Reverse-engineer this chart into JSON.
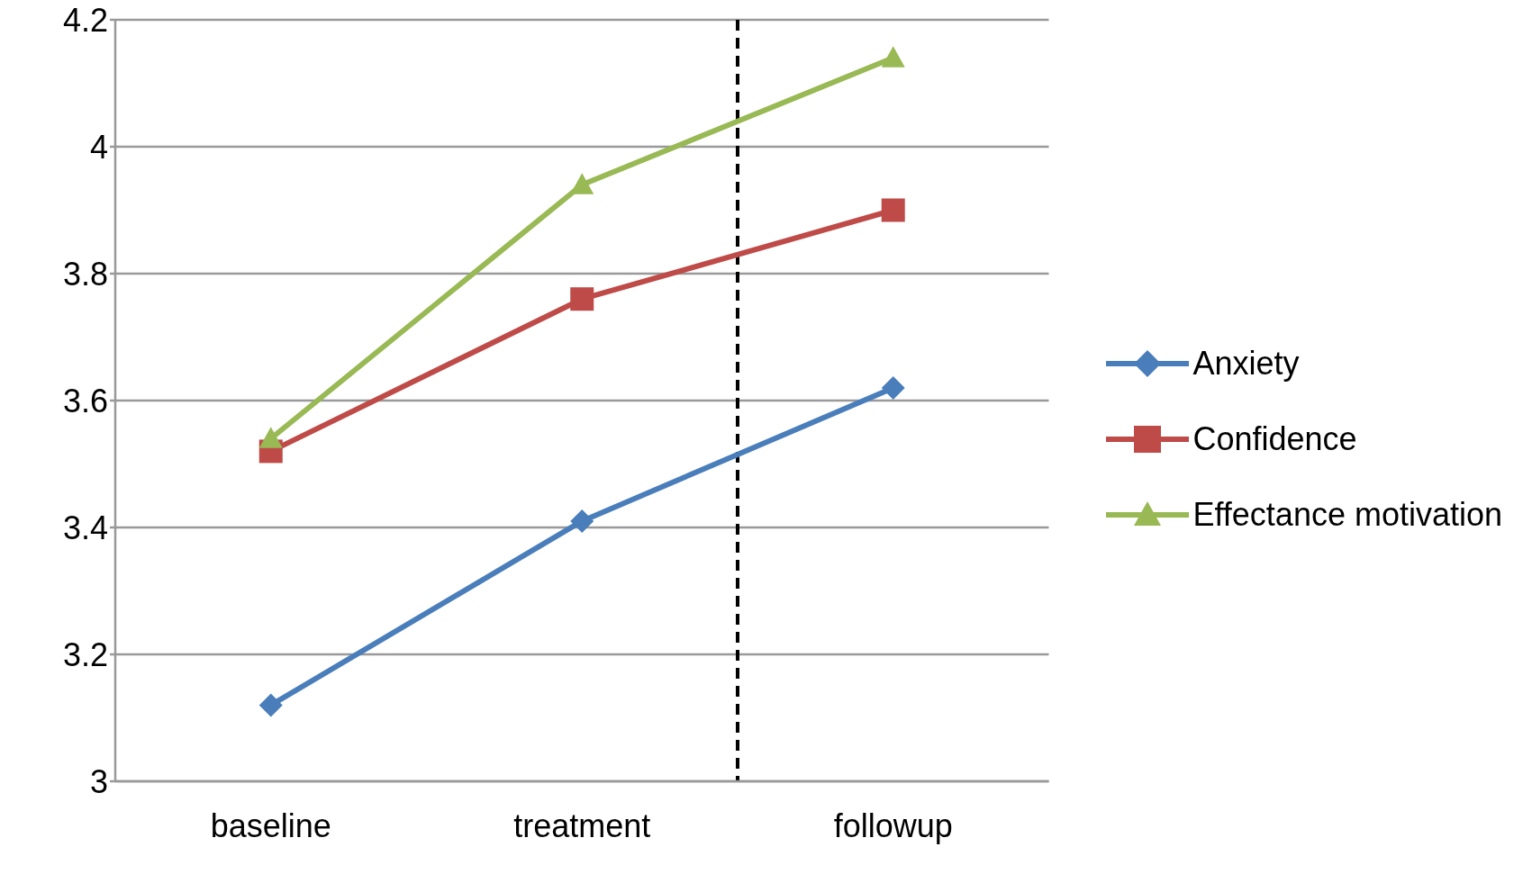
{
  "chart_data": {
    "type": "line",
    "categories": [
      "baseline",
      "treatment",
      "followup"
    ],
    "series": [
      {
        "name": "Anxiety",
        "color": "#4a7ebb",
        "marker": "diamond",
        "values": [
          3.12,
          3.41,
          3.62
        ]
      },
      {
        "name": "Confidence",
        "color": "#be4b48",
        "marker": "square",
        "values": [
          3.52,
          3.76,
          3.9
        ]
      },
      {
        "name": "Effectance motivation",
        "color": "#98b954",
        "marker": "triangle",
        "values": [
          3.54,
          3.94,
          4.14
        ]
      }
    ],
    "ylim": [
      3,
      4.2
    ],
    "yticks": [
      3,
      3.2,
      3.4,
      3.6,
      3.8,
      4,
      4.2
    ],
    "grid": "y",
    "legend": "right"
  }
}
